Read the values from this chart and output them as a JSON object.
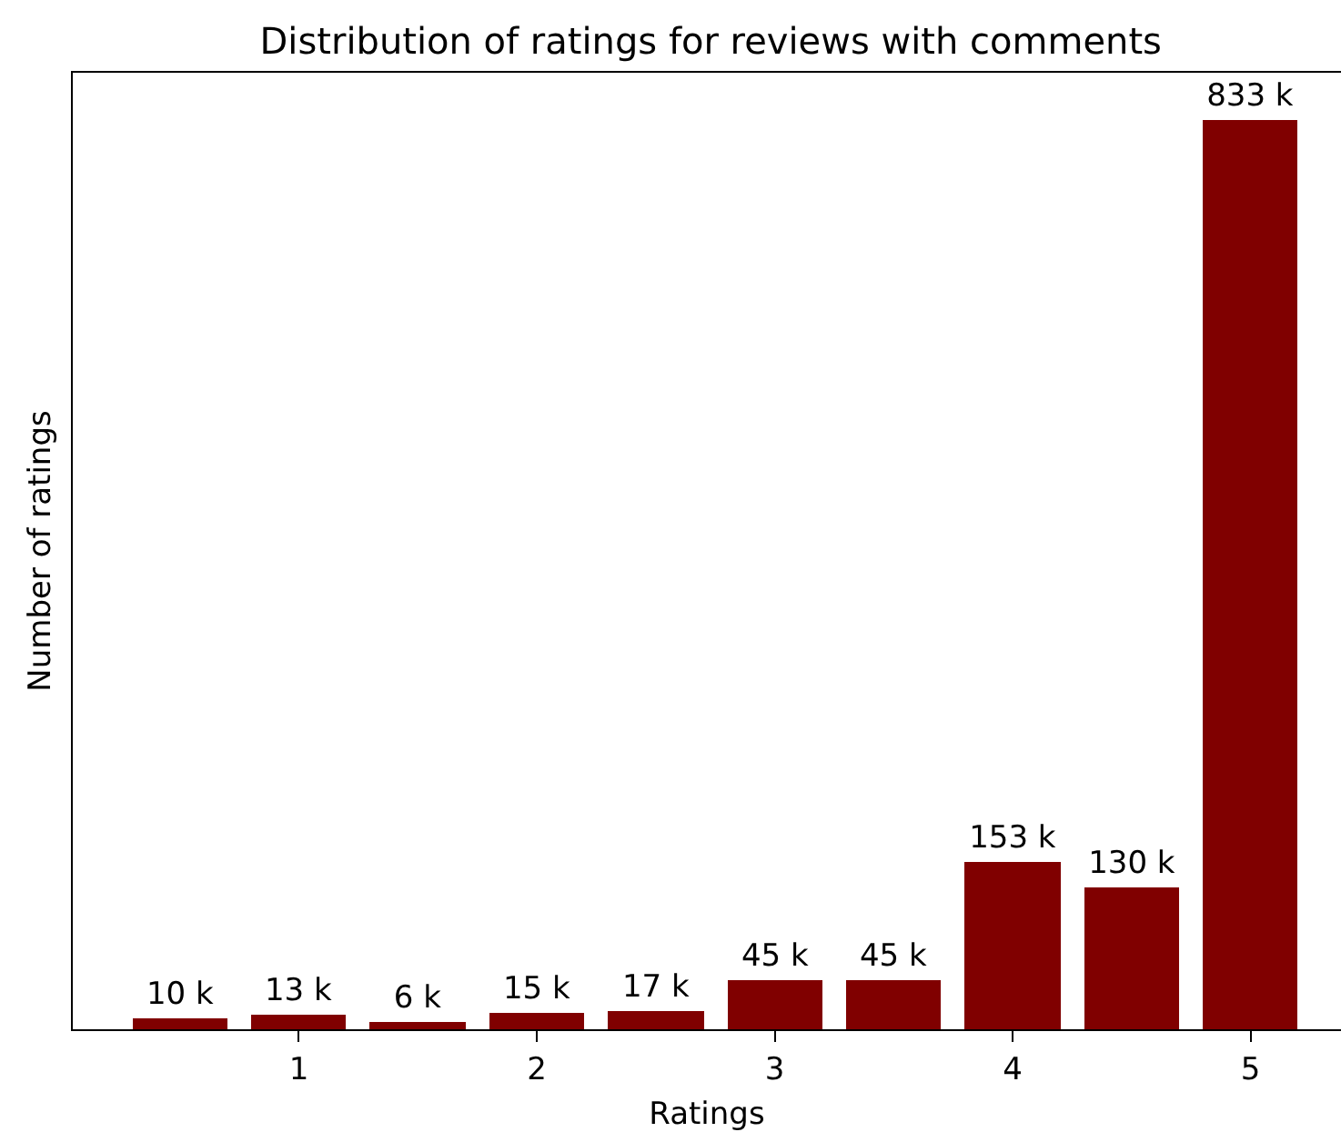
{
  "chart_data": {
    "type": "bar",
    "title": "Distribution of ratings for reviews with comments",
    "xlabel": "Ratings",
    "ylabel": "Number of ratings",
    "x": [
      0.5,
      1,
      1.5,
      2,
      2.5,
      3,
      3.5,
      4,
      4.5,
      5
    ],
    "values": [
      10,
      13,
      6,
      15,
      17,
      45,
      45,
      153,
      130,
      833
    ],
    "value_labels": [
      "10 k",
      "13 k",
      "6 k",
      "15 k",
      "17 k",
      "45 k",
      "45 k",
      "153 k",
      "130 k",
      "833 k"
    ],
    "color": "#800000",
    "xlim": [
      0.05,
      5.38
    ],
    "xticks": [
      1,
      2,
      3,
      4,
      5
    ],
    "grid": false
  }
}
